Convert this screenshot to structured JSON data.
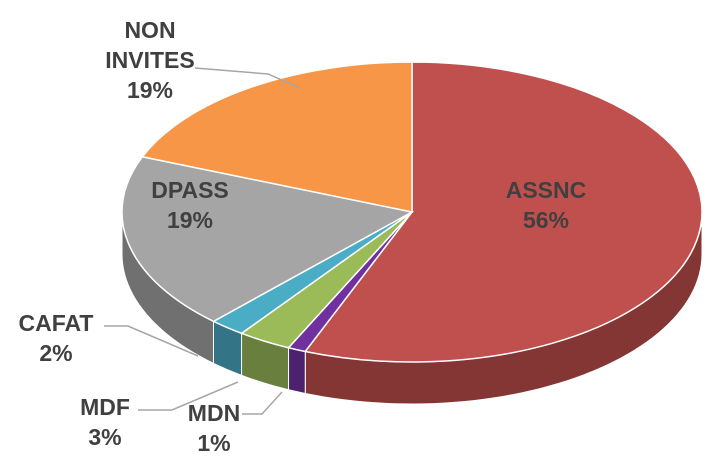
{
  "chart_data": {
    "type": "pie",
    "categories": [
      "ASSNC",
      "MDN",
      "MDF",
      "CAFAT",
      "DPASS",
      "NON INVITES"
    ],
    "values": [
      56,
      1,
      3,
      2,
      19,
      19
    ],
    "value_labels": [
      "56%",
      "1%",
      "3%",
      "2%",
      "19%",
      "19%"
    ],
    "colors": [
      "#c0504d",
      "#7030a0",
      "#9bbb59",
      "#4bacc6",
      "#a5a5a5",
      "#f79646"
    ]
  }
}
